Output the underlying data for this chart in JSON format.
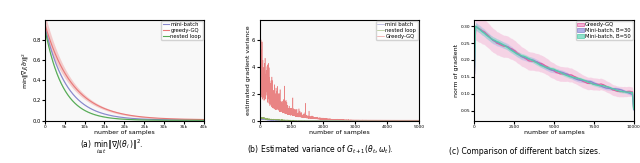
{
  "fig_width": 6.4,
  "fig_height": 1.63,
  "dpi": 100,
  "background_color": "#f8f8f8",
  "subplot1": {
    "xlabel": "number of samples",
    "ylabel": "min||\\u2207J(\\u03b8̂)||^2",
    "xlim": [
      0,
      40000
    ],
    "ylim": [
      0.0,
      1.0
    ],
    "colors": {
      "mini_batch": "#8888cc",
      "greedy_gq": "#e87878",
      "nested_loop": "#55aa55"
    },
    "fill_colors": {
      "mini_batch": "#aaaadd",
      "greedy_gq": "#f0a0a0",
      "nested_loop": "#88cc88"
    },
    "caption": "(a) $\\min_{i\\leq t}\\|\\nabla J(\\theta_i)\\|^2$."
  },
  "subplot2": {
    "xlabel": "number of samples",
    "ylabel": "estimated gradient variance",
    "xlim": [
      0,
      5000
    ],
    "ylim": [
      0.0,
      7.5
    ],
    "colors": {
      "mini_batch": "#8888cc",
      "greedy_gq": "#e87878",
      "nested_loop": "#88aa55"
    },
    "caption": "(b) Estimated variance of $G_{t+1}(\\theta_t, \\omega_t)$."
  },
  "subplot3": {
    "xlabel": "number of samples",
    "ylabel": "norm of gradient",
    "xlim": [
      0,
      10000
    ],
    "ylim": [
      0.02,
      0.32
    ],
    "colors": {
      "greedy_gq": "#e060a0",
      "minibatch_30": "#8888cc",
      "minibatch_50": "#55ccaa"
    },
    "fill_colors": {
      "greedy_gq": "#f4b0d4",
      "minibatch_30": "#b0b0e8",
      "minibatch_50": "#90e0cc"
    },
    "caption": "(c) Comparison of different batch sizes."
  }
}
